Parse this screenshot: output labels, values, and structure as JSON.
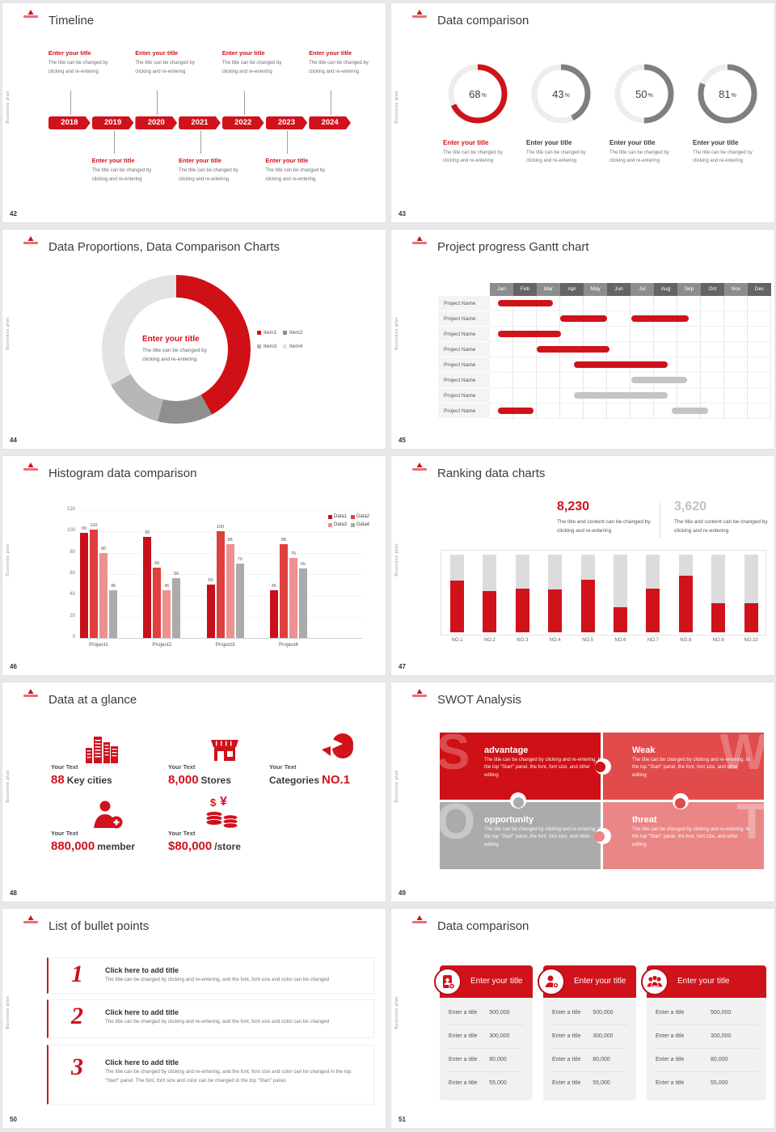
{
  "common": {
    "vertical_label": "Business plan",
    "colors": {
      "red": "#D0121B",
      "gray": "#7F7F7F",
      "track": "#EDEDED"
    }
  },
  "slides": {
    "timeline": {
      "number": "42",
      "title": "Timeline",
      "years": [
        "2018",
        "2019",
        "2020",
        "2021",
        "2022",
        "2023",
        "2024"
      ],
      "top_entry_years": [
        0,
        2,
        4,
        6
      ],
      "bottom_entry_years": [
        1,
        3,
        5
      ],
      "entry_title": "Enter your title",
      "entry_body": "The title can be changed by clicking and re-entering"
    },
    "rings": {
      "number": "43",
      "title": "Data comparison",
      "item_title": "Enter your title",
      "body": "The title can be changed by clicking and re-entering",
      "items": [
        {
          "percent": 68,
          "accent": true
        },
        {
          "percent": 43,
          "accent": false
        },
        {
          "percent": 50,
          "accent": false
        },
        {
          "percent": 81,
          "accent": false
        }
      ]
    },
    "donut": {
      "number": "44",
      "title": "Data Proportions, Data Comparison Charts",
      "center_title": "Enter your title",
      "center_body": "The title can be changed by clicking and re-entering",
      "segments": [
        {
          "label": "Item1",
          "value": 42,
          "color": "#CF1016"
        },
        {
          "label": "Item2",
          "value": 12,
          "color": "#8F8F8F"
        },
        {
          "label": "Item3",
          "value": 13,
          "color": "#B7B7B7"
        },
        {
          "label": "Item4",
          "value": 33,
          "color": "#E3E3E3"
        }
      ]
    },
    "gantt": {
      "number": "45",
      "title": "Project progress Gantt chart",
      "months": [
        "Jan",
        "Feb",
        "Mar",
        "Apr",
        "May",
        "Jun",
        "Jul",
        "Aug",
        "Sep",
        "Oct",
        "Nov",
        "Dec"
      ],
      "row_label": "Project Name",
      "rows": [
        {
          "bars": [
            {
              "start": 0.35,
              "end": 2.7,
              "color": "red"
            }
          ]
        },
        {
          "bars": [
            {
              "start": 3.0,
              "end": 5.0,
              "color": "red"
            },
            {
              "start": 6.05,
              "end": 8.5,
              "color": "red"
            }
          ]
        },
        {
          "bars": [
            {
              "start": 0.35,
              "end": 3.05,
              "color": "red"
            }
          ]
        },
        {
          "bars": [
            {
              "start": 2.0,
              "end": 5.1,
              "color": "red"
            }
          ]
        },
        {
          "bars": [
            {
              "start": 3.6,
              "end": 7.6,
              "color": "red"
            }
          ]
        },
        {
          "bars": [
            {
              "start": 6.05,
              "end": 8.4,
              "color": "gray"
            }
          ]
        },
        {
          "bars": [
            {
              "start": 3.6,
              "end": 7.6,
              "color": "gray"
            }
          ]
        },
        {
          "bars": [
            {
              "start": 0.35,
              "end": 1.85,
              "color": "red"
            },
            {
              "start": 7.75,
              "end": 9.3,
              "color": "gray"
            }
          ]
        }
      ]
    },
    "histogram": {
      "number": "46",
      "title": "Histogram data comparison",
      "categories": [
        "Project1",
        "Project2",
        "Project3",
        "Project4"
      ],
      "series": [
        {
          "name": "Data1",
          "color": "#C8101A",
          "values": [
            99,
            95,
            50,
            45
          ]
        },
        {
          "name": "Data2",
          "color": "#DE4040",
          "values": [
            102,
            66,
            100,
            88
          ]
        },
        {
          "name": "Data3",
          "color": "#EC9090",
          "values": [
            80,
            45,
            88,
            75
          ]
        },
        {
          "name": "Data4",
          "color": "#ABABAB",
          "values": [
            45,
            56,
            70,
            65
          ]
        }
      ],
      "y_ticks": [
        0,
        20,
        40,
        60,
        80,
        100,
        120
      ],
      "y_max": 120
    },
    "ranking": {
      "number": "47",
      "title": "Ranking data charts",
      "stats": [
        {
          "value": "8,230",
          "desc": "The title and content can be changed by clicking and re-entering",
          "accent": true
        },
        {
          "value": "3,620",
          "desc": "The title and content can be changed by clicking and re-entering",
          "accent": false
        }
      ],
      "categories": [
        "NO.1",
        "NO.2",
        "NO.3",
        "NO.4",
        "NO.5",
        "NO.6",
        "NO.7",
        "NO.8",
        "NO.9",
        "NO.10"
      ],
      "values_pct": [
        67,
        53,
        56,
        55,
        68,
        32,
        56,
        73,
        38,
        38
      ]
    },
    "glance": {
      "number": "48",
      "title": "Data at a glance",
      "items": [
        {
          "label": "Your Text",
          "prefix": "",
          "value": "88",
          "suffix": "Key cities",
          "icon": "city-icon"
        },
        {
          "label": "Your Text",
          "prefix": "",
          "value": "8,000",
          "suffix": "Stores",
          "icon": "store-icon"
        },
        {
          "label": "Your Text",
          "prefix": "Categories",
          "value": "NO.1",
          "suffix": "",
          "icon": "pie-icon"
        },
        {
          "label": "Your Text",
          "prefix": "",
          "value": "880,000",
          "suffix": "member",
          "icon": "member-icon"
        },
        {
          "label": "Your Text",
          "prefix": "",
          "value": "$80,000",
          "suffix": "/store",
          "icon": "money-icon"
        }
      ]
    },
    "swot": {
      "number": "49",
      "title": "SWOT Analysis",
      "body": "The title can be changed by clicking and re-entering. In the top \"Start\" panel, the font, font size, and other editing",
      "quadrants": [
        {
          "letter": "S",
          "title": "advantage",
          "color": "#CF1016"
        },
        {
          "letter": "W",
          "title": "Weak",
          "color": "#E24B4B"
        },
        {
          "letter": "O",
          "title": "opportunity",
          "color": "#ABABAB"
        },
        {
          "letter": "T",
          "title": "threat",
          "color": "#EA8686"
        }
      ]
    },
    "bullets": {
      "number": "50",
      "title": "List of bullet points",
      "items": [
        {
          "num": "1",
          "title": "Click here to add title",
          "body": "The title can be changed by clicking and re-entering, and the font, font size and color can be changed"
        },
        {
          "num": "2",
          "title": "Click here to add title",
          "body": "The title can be changed by clicking and re-entering, and the font, font size and color can be changed"
        },
        {
          "num": "3",
          "title": "Click here to add title",
          "body": "The title can be changed by clicking and re-entering, and the font, font size and color can be changed in the top \"Start\" panel. The font, font size and color can be changed in the top \"Start\" panel."
        }
      ]
    },
    "tables": {
      "number": "51",
      "title": "Data comparison",
      "header_title": "Enter your title",
      "row_label": "Enter a title",
      "values": [
        "500,000",
        "300,000",
        "80,000",
        "55,000"
      ],
      "icons": [
        "device-user-icon",
        "user-plus-icon",
        "users-group-icon"
      ]
    }
  }
}
